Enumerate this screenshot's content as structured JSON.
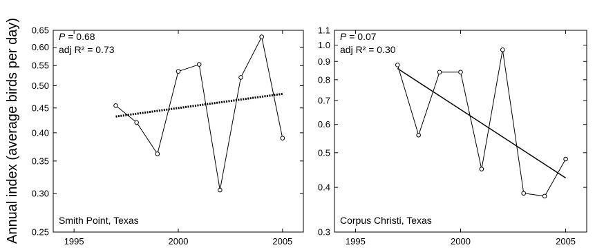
{
  "figure": {
    "ylabel": "Annual index (average birds per day)"
  },
  "chart_data": [
    {
      "type": "line",
      "y_scale": "log",
      "location": "Smith Point, Texas",
      "p_label": "P",
      "p_value": " = 0.68",
      "adj_r2": "adj R² = 0.73",
      "xlim": [
        1994,
        2006
      ],
      "ylim": [
        0.25,
        0.65
      ],
      "x_ticks": [
        "1995",
        "2000",
        "2005"
      ],
      "y_ticks": [
        "0.25",
        "0.30",
        "0.35",
        "0.40",
        "0.45",
        "0.50",
        "0.55",
        "0.60",
        "0.65"
      ],
      "series": [
        {
          "x": [
            1997,
            1998,
            1999,
            2000,
            2001,
            2002,
            2003,
            2004,
            2005
          ],
          "y": [
            0.455,
            0.42,
            0.362,
            0.535,
            0.553,
            0.305,
            0.52,
            0.63,
            0.39
          ]
        }
      ],
      "trend": {
        "x": [
          1997,
          2005
        ],
        "y": [
          0.432,
          0.481
        ],
        "style": "dotted"
      }
    },
    {
      "type": "line",
      "y_scale": "log",
      "location": "Corpus Christi, Texas",
      "p_label": "P",
      "p_value": " = 0.07",
      "adj_r2": "adj R² = 0.30",
      "xlim": [
        1994,
        2006
      ],
      "ylim": [
        0.3,
        1.1
      ],
      "x_ticks": [
        "1995",
        "2000",
        "2005"
      ],
      "y_ticks": [
        "0.3",
        "0.4",
        "0.5",
        "0.6",
        "0.7",
        "0.8",
        "0.9",
        "1.0",
        "1.1"
      ],
      "series": [
        {
          "x": [
            1997,
            1998,
            1999,
            2000,
            2001,
            2002,
            2003,
            2004,
            2005
          ],
          "y": [
            0.88,
            0.56,
            0.84,
            0.84,
            0.45,
            0.97,
            0.385,
            0.378,
            0.48
          ]
        }
      ],
      "trend": {
        "x": [
          1997,
          2005
        ],
        "y": [
          0.86,
          0.425
        ],
        "style": "solid"
      }
    }
  ]
}
